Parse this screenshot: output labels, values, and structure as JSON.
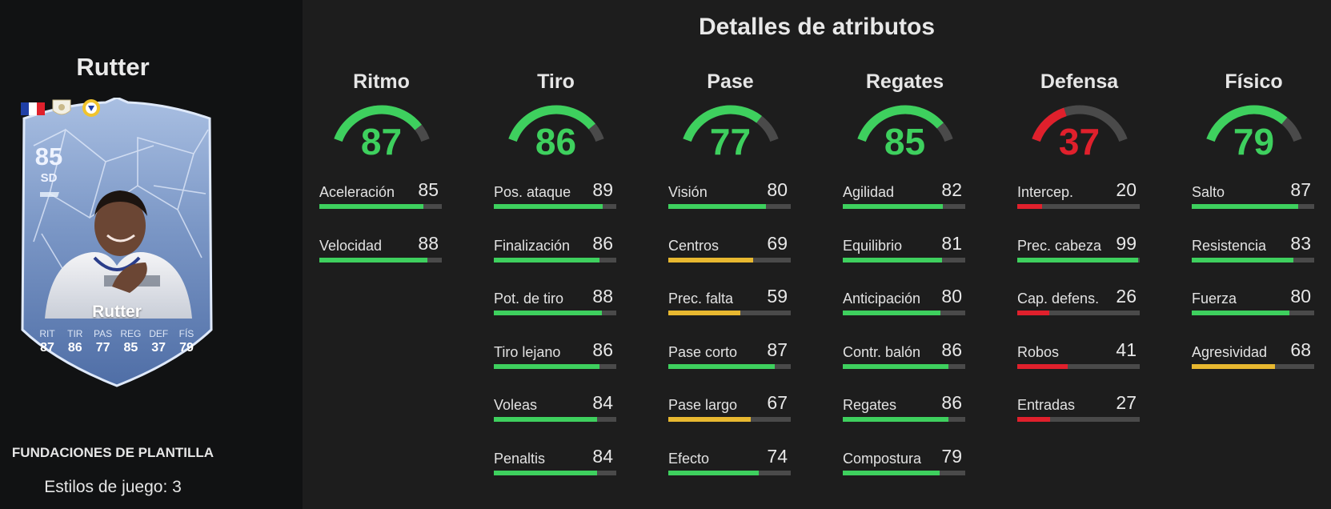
{
  "player": {
    "name": "Rutter",
    "card": {
      "overall": "85",
      "position": "SD",
      "name": "Rutter",
      "stats": [
        {
          "label": "RIT",
          "value": "87"
        },
        {
          "label": "TIR",
          "value": "86"
        },
        {
          "label": "PAS",
          "value": "77"
        },
        {
          "label": "REG",
          "value": "85"
        },
        {
          "label": "DEF",
          "value": "37"
        },
        {
          "label": "FÍS",
          "value": "79"
        }
      ],
      "badges": [
        "flag-france-icon",
        "league-badge-icon",
        "club-crest-icon"
      ]
    },
    "footer": {
      "promo": "FUNDACIONES DE PLANTILLA",
      "playstyles": "Estilos de juego: 3"
    }
  },
  "section_title": "Detalles de atributos",
  "colors": {
    "green": "#3ed05e",
    "yellow": "#e8b830",
    "red": "#e0202c",
    "track": "#4a4a4a"
  },
  "categories": [
    {
      "name": "Ritmo",
      "value": 87,
      "stats": [
        {
          "label": "Aceleración",
          "value": 85
        },
        {
          "label": "Velocidad",
          "value": 88
        }
      ]
    },
    {
      "name": "Tiro",
      "value": 86,
      "stats": [
        {
          "label": "Pos. ataque",
          "value": 89
        },
        {
          "label": "Finalización",
          "value": 86
        },
        {
          "label": "Pot. de tiro",
          "value": 88
        },
        {
          "label": "Tiro lejano",
          "value": 86
        },
        {
          "label": "Voleas",
          "value": 84
        },
        {
          "label": "Penaltis",
          "value": 84
        }
      ]
    },
    {
      "name": "Pase",
      "value": 77,
      "stats": [
        {
          "label": "Visión",
          "value": 80
        },
        {
          "label": "Centros",
          "value": 69
        },
        {
          "label": "Prec. falta",
          "value": 59
        },
        {
          "label": "Pase corto",
          "value": 87
        },
        {
          "label": "Pase largo",
          "value": 67
        },
        {
          "label": "Efecto",
          "value": 74
        }
      ]
    },
    {
      "name": "Regates",
      "value": 85,
      "stats": [
        {
          "label": "Agilidad",
          "value": 82
        },
        {
          "label": "Equilibrio",
          "value": 81
        },
        {
          "label": "Anticipación",
          "value": 80
        },
        {
          "label": "Contr. balón",
          "value": 86
        },
        {
          "label": "Regates",
          "value": 86
        },
        {
          "label": "Compostura",
          "value": 79
        }
      ]
    },
    {
      "name": "Defensa",
      "value": 37,
      "stats": [
        {
          "label": "Intercep.",
          "value": 20
        },
        {
          "label": "Prec. cabeza",
          "value": 99
        },
        {
          "label": "Cap. defens.",
          "value": 26
        },
        {
          "label": "Robos",
          "value": 41
        },
        {
          "label": "Entradas",
          "value": 27
        }
      ]
    },
    {
      "name": "Físico",
      "value": 79,
      "stats": [
        {
          "label": "Salto",
          "value": 87
        },
        {
          "label": "Resistencia",
          "value": 83
        },
        {
          "label": "Fuerza",
          "value": 80
        },
        {
          "label": "Agresividad",
          "value": 68
        }
      ]
    }
  ]
}
